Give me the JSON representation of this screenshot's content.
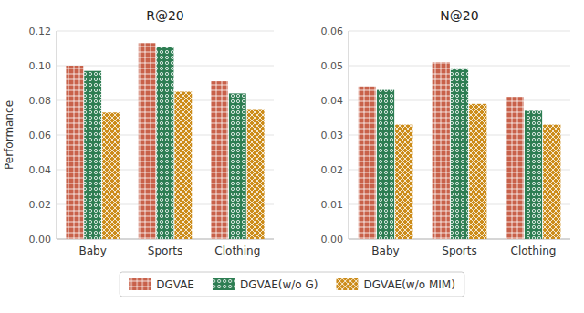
{
  "chart_data": [
    {
      "type": "bar",
      "title": "R@20",
      "y_label": "Performance",
      "categories": [
        "Baby",
        "Sports",
        "Clothing"
      ],
      "series": [
        {
          "name": "DGVAE",
          "color": "#C8614A",
          "values": [
            0.1,
            0.113,
            0.091
          ]
        },
        {
          "name": "DGVAE(w/o G)",
          "color": "#2D7D52",
          "values": [
            0.097,
            0.111,
            0.084
          ]
        },
        {
          "name": "DGVAE(w/o MIM)",
          "color": "#CC8C1A",
          "values": [
            0.073,
            0.085,
            0.075
          ]
        }
      ],
      "ylim": [
        0.0,
        0.12
      ],
      "yticks": [
        {
          "value": 0.0,
          "label": "0.00"
        },
        0.02,
        0.04,
        0.06,
        0.08,
        {
          "value": 0.1,
          "label": "0.10"
        },
        0.12
      ],
      "grid": true,
      "legend": "bottom"
    },
    {
      "type": "bar",
      "title": "N@20",
      "categories": [
        "Baby",
        "Sports",
        "Clothing"
      ],
      "series": [
        {
          "name": "DGVAE",
          "color": "#C8614A",
          "values": [
            0.044,
            0.051,
            0.041
          ]
        },
        {
          "name": "DGVAE(w/o G)",
          "color": "#2D7D52",
          "values": [
            0.043,
            0.049,
            0.037
          ]
        },
        {
          "name": "DGVAE(w/o MIM)",
          "color": "#CC8C1A",
          "values": [
            0.033,
            0.039,
            0.033
          ]
        }
      ],
      "ylim": [
        0.0,
        0.06
      ],
      "yticks": [
        {
          "value": 0.0,
          "label": "0.00"
        },
        0.01,
        0.02,
        0.03,
        0.04,
        0.05,
        0.06
      ],
      "grid": true,
      "legend": "bottom"
    }
  ]
}
